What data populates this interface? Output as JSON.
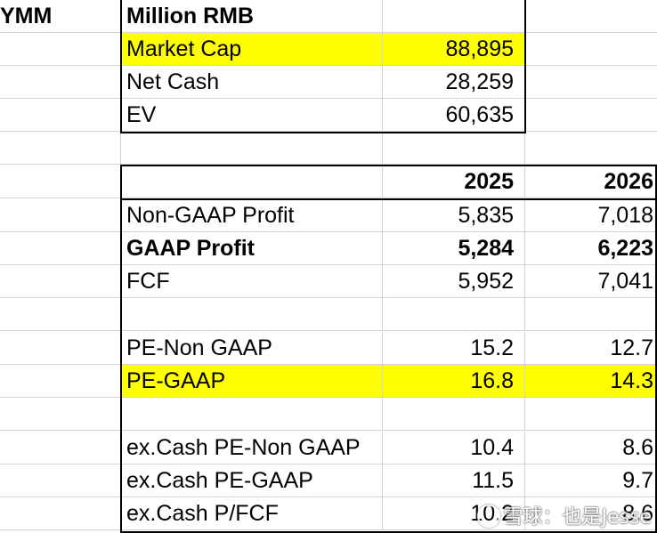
{
  "ticker": "YMM",
  "unit_label": "Million RMB",
  "summary": [
    {
      "label": "Market Cap",
      "value": "88,895"
    },
    {
      "label": "Net Cash",
      "value": "28,259"
    },
    {
      "label": "EV",
      "value": "60,635"
    }
  ],
  "years": [
    "2025",
    "2026"
  ],
  "metrics": [
    {
      "label": "Non-GAAP Profit",
      "y2025": "5,835",
      "y2026": "7,018"
    },
    {
      "label": "GAAP Profit",
      "y2025": "5,284",
      "y2026": "6,223"
    },
    {
      "label": "FCF",
      "y2025": "5,952",
      "y2026": "7,041"
    },
    {
      "label": "PE-Non GAAP",
      "y2025": "15.2",
      "y2026": "12.7"
    },
    {
      "label": "PE-GAAP",
      "y2025": "16.8",
      "y2026": "14.3"
    },
    {
      "label": "ex.Cash PE-Non GAAP",
      "y2025": "10.4",
      "y2026": "8.6"
    },
    {
      "label": "ex.Cash PE-GAAP",
      "y2025": "11.5",
      "y2026": "9.7"
    },
    {
      "label": "ex.Cash P/FCF",
      "y2025": "10.2",
      "y2026": "8.6"
    }
  ],
  "highlight_color": "#ffff00",
  "watermark": "雪球：也是Jesse"
}
